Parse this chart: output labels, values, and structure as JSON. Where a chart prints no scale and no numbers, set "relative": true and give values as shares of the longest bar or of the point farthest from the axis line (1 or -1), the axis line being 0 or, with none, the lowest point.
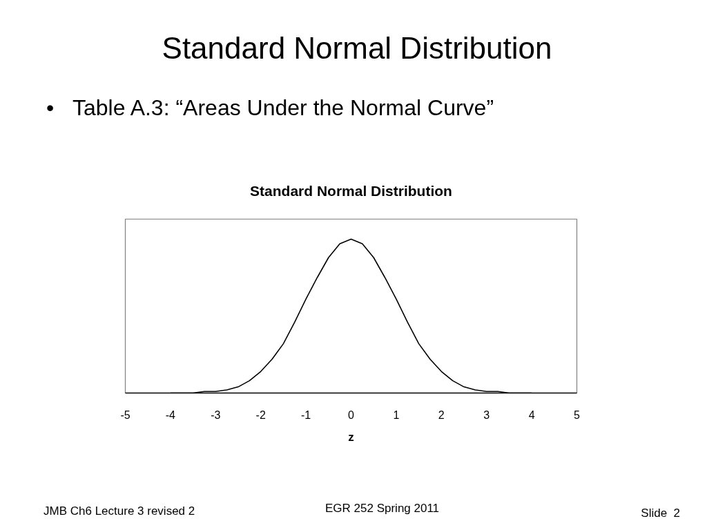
{
  "chart_data": {
    "type": "line",
    "title": "Standard Normal Distribution",
    "xlabel": "z",
    "annotations": [
      "Standard Normal Distribution",
      "•",
      "Table A.3: “Areas Under the Normal Curve”",
      "JMB Ch6 Lecture 3 revised 2",
      "EGR 252 Spring 2011",
      "Slide  2"
    ],
    "relative": true,
    "x": [
      -4,
      -3.75,
      -3.5,
      -3.25,
      -3,
      -2.75,
      -2.5,
      -2.25,
      -2,
      -1.75,
      -1.5,
      -1.25,
      -1,
      -0.75,
      -0.5,
      -0.25,
      0,
      0.25,
      0.5,
      0.75,
      1,
      1.25,
      1.5,
      1.75,
      2,
      2.25,
      2.5,
      2.75,
      3,
      3.25,
      3.5,
      3.75,
      4
    ],
    "series": [
      {
        "color": "#000000",
        "values": [
          0,
          0,
          0,
          0.01,
          0.01,
          0.02,
          0.04,
          0.08,
          0.14,
          0.22,
          0.32,
          0.46,
          0.61,
          0.75,
          0.88,
          0.97,
          1,
          0.97,
          0.88,
          0.75,
          0.61,
          0.46,
          0.32,
          0.22,
          0.14,
          0.08,
          0.04,
          0.02,
          0.01,
          0.01,
          0,
          0,
          0
        ]
      }
    ],
    "xlim": [
      -5,
      5
    ],
    "xticks": [
      -5,
      -4,
      -3,
      -2,
      -1,
      0,
      1,
      2,
      3,
      4,
      5
    ]
  }
}
